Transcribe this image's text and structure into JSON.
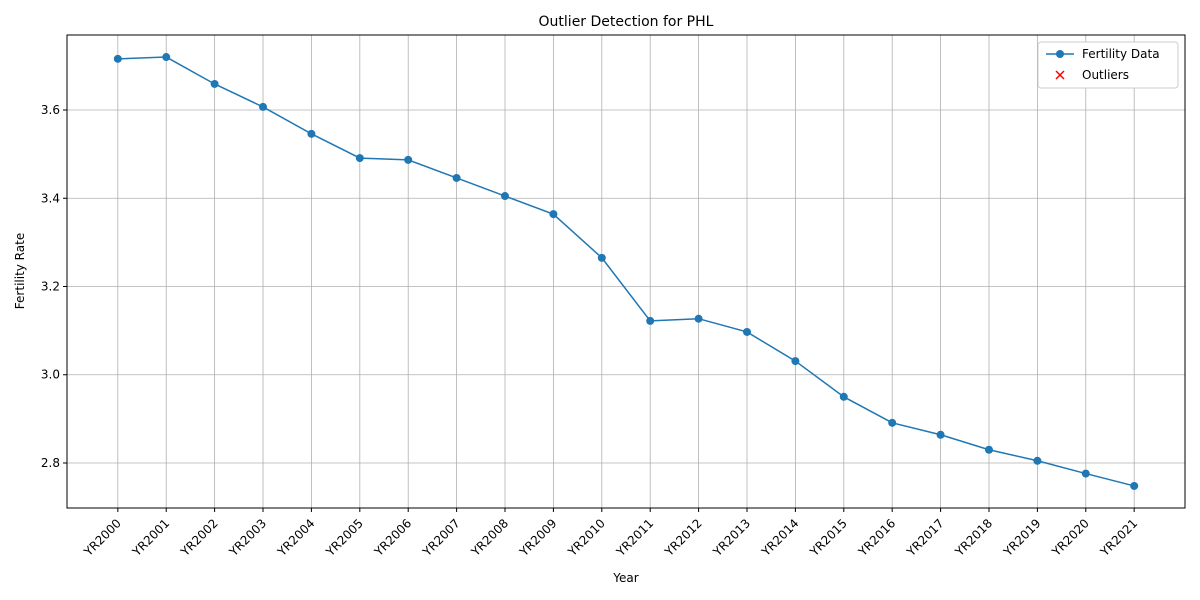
{
  "chart_data": {
    "type": "line",
    "title": "Outlier Detection for PHL",
    "x_label": "Year",
    "y_label": "Fertility Rate",
    "categories": [
      "YR2000",
      "YR2001",
      "YR2002",
      "YR2003",
      "YR2004",
      "YR2005",
      "YR2006",
      "YR2007",
      "YR2008",
      "YR2009",
      "YR2010",
      "YR2011",
      "YR2012",
      "YR2013",
      "YR2014",
      "YR2015",
      "YR2016",
      "YR2017",
      "YR2018",
      "YR2019",
      "YR2020",
      "YR2021"
    ],
    "series": [
      {
        "name": "Fertility Data",
        "color": "#1f77b4",
        "marker": "o",
        "values": [
          3.716,
          3.72,
          3.659,
          3.607,
          3.546,
          3.491,
          3.487,
          3.446,
          3.405,
          3.364,
          3.265,
          3.122,
          3.127,
          3.097,
          3.031,
          2.95,
          2.891,
          2.864,
          2.83,
          2.805,
          2.776,
          2.748
        ]
      },
      {
        "name": "Outliers",
        "color": "#ff0000",
        "marker": "x",
        "values": [
          null,
          null,
          null,
          null,
          null,
          null,
          null,
          null,
          null,
          null,
          null,
          null,
          null,
          null,
          null,
          null,
          null,
          null,
          null,
          null,
          null,
          null
        ]
      }
    ],
    "ylim": [
      2.698,
      3.77
    ],
    "yticks": [
      2.8,
      {
        "value": 3,
        "label": "3.0"
      },
      3.2,
      3.4,
      3.6
    ],
    "grid": true,
    "legend": "upper right"
  }
}
